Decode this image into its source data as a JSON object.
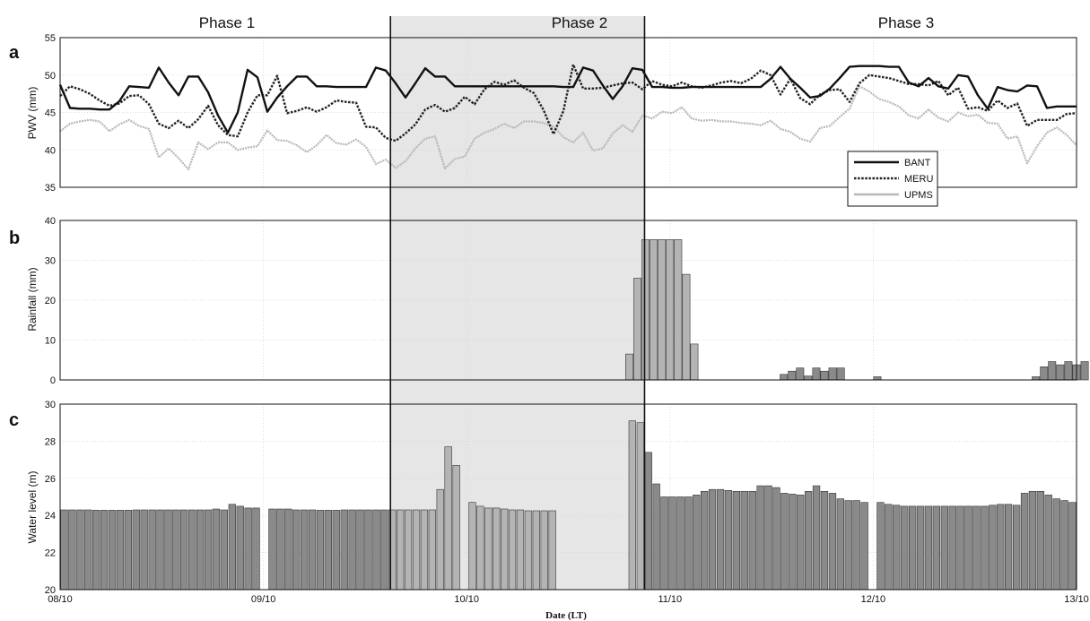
{
  "phases": [
    "Phase 1",
    "Phase 2",
    "Phase 3"
  ],
  "panel_letters": [
    "a",
    "b",
    "c"
  ],
  "colors": {
    "BANT": "#111111",
    "MERU": "#222222",
    "UPMS": "#b8b8b8",
    "phase2_bar": "#b4b4b4",
    "other_bar": "#8a8a8a",
    "phase2_shade": "#e6e6e6"
  },
  "chart_data": [
    {
      "type": "line",
      "panel": "a",
      "ylabel": "PWV (mm)",
      "ylim": [
        35,
        55
      ],
      "yticks": [
        35,
        40,
        45,
        50,
        55
      ],
      "xlim": [
        "08/10",
        "13/10"
      ],
      "grid": true,
      "legend_position": "right",
      "series": [
        {
          "name": "BANT",
          "style": "solid-thick",
          "values": [
            48.7,
            45.6,
            45.5,
            45.5,
            45.4,
            45.4,
            46.5,
            48.5,
            48.4,
            48.3,
            51.0,
            49.0,
            47.3,
            49.8,
            49.8,
            47.7,
            44.6,
            42.3,
            45.0,
            50.7,
            49.7,
            45.1,
            47.0,
            48.5,
            49.8,
            49.8,
            48.5,
            48.5,
            48.4,
            48.4,
            48.4,
            48.4,
            51.0,
            50.6,
            48.9,
            47.0,
            48.9,
            50.9,
            49.8,
            49.8,
            48.5,
            48.5,
            48.5,
            48.5,
            48.5,
            48.5,
            48.5,
            48.5,
            48.5,
            48.5,
            48.5,
            48.4,
            48.4,
            51.0,
            50.6,
            48.6,
            46.8,
            48.5,
            50.9,
            50.7,
            48.4,
            48.4,
            48.3,
            48.3,
            48.4,
            48.4,
            48.4,
            48.4,
            48.4,
            48.4,
            48.4,
            48.4,
            49.5,
            51.1,
            49.5,
            48.3,
            47.0,
            47.2,
            48.2,
            49.6,
            51.1,
            51.2,
            51.2,
            51.2,
            51.1,
            51.1,
            49.0,
            48.5,
            49.6,
            48.5,
            48.2,
            50.0,
            49.8,
            47.3,
            45.5,
            48.4,
            48.0,
            47.8,
            48.6,
            48.5,
            45.6,
            45.8,
            45.8,
            45.8
          ]
        },
        {
          "name": "MERU",
          "style": "dotted-thick",
          "values": [
            47.2,
            48.5,
            48.1,
            47.5,
            46.6,
            45.9,
            46.2,
            47.2,
            47.3,
            46.1,
            43.5,
            42.9,
            43.9,
            42.9,
            44.1,
            45.9,
            43.3,
            42.0,
            41.8,
            45.0,
            47.3,
            47.3,
            49.9,
            44.9,
            45.2,
            45.7,
            45.1,
            45.7,
            46.6,
            46.4,
            46.3,
            43.1,
            43.0,
            41.6,
            41.2,
            42.2,
            43.4,
            45.4,
            46.0,
            45.1,
            45.6,
            47.1,
            46.1,
            48.1,
            49.1,
            48.7,
            49.3,
            48.3,
            47.6,
            45.3,
            42.1,
            45.2,
            51.4,
            48.2,
            48.2,
            48.3,
            48.6,
            48.9,
            49.0,
            48.1,
            49.2,
            48.7,
            48.5,
            49.0,
            48.5,
            48.3,
            48.6,
            49.0,
            49.2,
            48.9,
            49.5,
            50.6,
            50.0,
            47.4,
            49.5,
            46.9,
            46.1,
            47.4,
            48.0,
            48.1,
            46.4,
            48.9,
            50.0,
            49.8,
            49.6,
            49.2,
            48.8,
            48.8,
            48.6,
            49.2,
            47.3,
            48.3,
            45.5,
            45.7,
            45.2,
            46.6,
            45.6,
            46.2,
            43.2,
            44.0,
            44.0,
            44.0,
            44.8,
            44.9
          ]
        },
        {
          "name": "UPMS",
          "style": "dotted-light",
          "values": [
            42.5,
            43.5,
            43.8,
            44.0,
            43.8,
            42.5,
            43.4,
            44.0,
            43.2,
            42.8,
            39.0,
            40.2,
            38.9,
            37.4,
            41.0,
            40.1,
            41.0,
            41.0,
            40.0,
            40.3,
            40.5,
            42.6,
            41.3,
            41.2,
            40.6,
            39.7,
            40.6,
            42.0,
            40.9,
            40.7,
            41.4,
            40.4,
            38.1,
            38.7,
            37.6,
            38.5,
            40.2,
            41.5,
            41.8,
            37.5,
            38.8,
            39.1,
            41.5,
            42.3,
            42.8,
            43.5,
            42.9,
            43.8,
            43.8,
            43.6,
            43.1,
            41.7,
            41.0,
            42.3,
            39.9,
            40.2,
            42.2,
            43.3,
            42.4,
            44.6,
            44.2,
            45.1,
            44.9,
            45.7,
            44.2,
            43.9,
            44.0,
            43.8,
            43.8,
            43.6,
            43.5,
            43.3,
            43.9,
            42.8,
            42.4,
            41.5,
            41.1,
            42.9,
            43.2,
            44.4,
            45.5,
            48.5,
            47.8,
            46.8,
            46.4,
            45.8,
            44.6,
            44.2,
            45.4,
            44.3,
            43.8,
            45.0,
            44.5,
            44.7,
            43.6,
            43.5,
            41.5,
            41.8,
            38.2,
            40.5,
            42.3,
            43.0,
            42.0,
            40.6
          ]
        }
      ]
    },
    {
      "type": "bar",
      "panel": "b",
      "ylabel": "Rainfall (mm)",
      "ylim": [
        0,
        40
      ],
      "yticks": [
        0,
        10,
        20,
        30,
        40
      ],
      "xlim": [
        "08/10",
        "13/10"
      ],
      "grid": true,
      "bars": [
        {
          "x": 2.8,
          "value": 6.5,
          "phase": 2
        },
        {
          "x": 2.84,
          "value": 25.5,
          "phase": 2
        },
        {
          "x": 2.88,
          "value": 35.2,
          "phase": 2
        },
        {
          "x": 2.92,
          "value": 35.2,
          "phase": 2
        },
        {
          "x": 2.96,
          "value": 35.2,
          "phase": 2
        },
        {
          "x": 3.0,
          "value": 35.2,
          "phase": 2
        },
        {
          "x": 3.04,
          "value": 35.2,
          "phase": 2
        },
        {
          "x": 3.08,
          "value": 26.5,
          "phase": 2
        },
        {
          "x": 3.12,
          "value": 9.0,
          "phase": 2
        },
        {
          "x": 3.56,
          "value": 1.4,
          "phase": 3
        },
        {
          "x": 3.6,
          "value": 2.2,
          "phase": 3
        },
        {
          "x": 3.64,
          "value": 3.0,
          "phase": 3
        },
        {
          "x": 3.68,
          "value": 1.0,
          "phase": 3
        },
        {
          "x": 3.72,
          "value": 3.0,
          "phase": 3
        },
        {
          "x": 3.76,
          "value": 2.2,
          "phase": 3
        },
        {
          "x": 3.8,
          "value": 3.0,
          "phase": 3
        },
        {
          "x": 3.84,
          "value": 3.0,
          "phase": 3
        },
        {
          "x": 4.02,
          "value": 0.8,
          "phase": 3
        },
        {
          "x": 4.8,
          "value": 0.8,
          "phase": 3
        },
        {
          "x": 4.84,
          "value": 3.3,
          "phase": 3
        },
        {
          "x": 4.88,
          "value": 4.6,
          "phase": 3
        },
        {
          "x": 4.92,
          "value": 3.8,
          "phase": 3
        },
        {
          "x": 4.96,
          "value": 4.6,
          "phase": 3
        },
        {
          "x": 5.0,
          "value": 3.8,
          "phase": 3
        },
        {
          "x": 5.04,
          "value": 4.6,
          "phase": 3
        }
      ]
    },
    {
      "type": "bar",
      "panel": "c",
      "ylabel": "Water level (m)",
      "xlabel": "Date (LT)",
      "ylim": [
        20,
        30
      ],
      "yticks": [
        20,
        22,
        24,
        26,
        28,
        30
      ],
      "xticks": [
        "08/10",
        "09/10",
        "10/10",
        "11/10",
        "12/10",
        "13/10"
      ],
      "grid": true,
      "start_day": 0.0,
      "step_day": 0.0417,
      "phase2_range": [
        1.625,
        2.875
      ],
      "values": [
        24.3,
        24.3,
        24.3,
        24.3,
        24.28,
        24.28,
        24.28,
        24.28,
        24.28,
        24.3,
        24.3,
        24.3,
        24.3,
        24.3,
        24.3,
        24.3,
        24.3,
        24.3,
        24.3,
        24.35,
        24.3,
        24.6,
        24.5,
        24.4,
        24.4,
        null,
        24.35,
        24.35,
        24.35,
        24.3,
        24.3,
        24.3,
        24.28,
        24.28,
        24.28,
        24.3,
        24.3,
        24.3,
        24.3,
        24.3,
        24.3,
        24.3,
        24.3,
        24.3,
        24.3,
        24.3,
        24.3,
        25.4,
        27.7,
        26.7,
        null,
        24.7,
        24.5,
        24.4,
        24.4,
        24.35,
        24.3,
        24.3,
        24.25,
        24.25,
        24.25,
        24.25,
        null,
        null,
        null,
        null,
        null,
        null,
        null,
        null,
        null,
        29.1,
        29.0,
        27.4,
        25.7,
        25.0,
        25.0,
        25.0,
        25.0,
        25.1,
        25.3,
        25.4,
        25.4,
        25.35,
        25.3,
        25.3,
        25.3,
        25.6,
        25.6,
        25.5,
        25.2,
        25.15,
        25.1,
        25.3,
        25.6,
        25.3,
        25.2,
        24.9,
        24.8,
        24.8,
        24.7,
        null,
        24.7,
        24.6,
        24.55,
        24.5,
        24.5,
        24.5,
        24.5,
        24.5,
        24.5,
        24.5,
        24.5,
        24.5,
        24.5,
        24.5,
        24.55,
        24.6,
        24.6,
        24.55,
        25.2,
        25.3,
        25.3,
        25.1,
        24.9,
        24.8,
        24.7
      ]
    }
  ]
}
